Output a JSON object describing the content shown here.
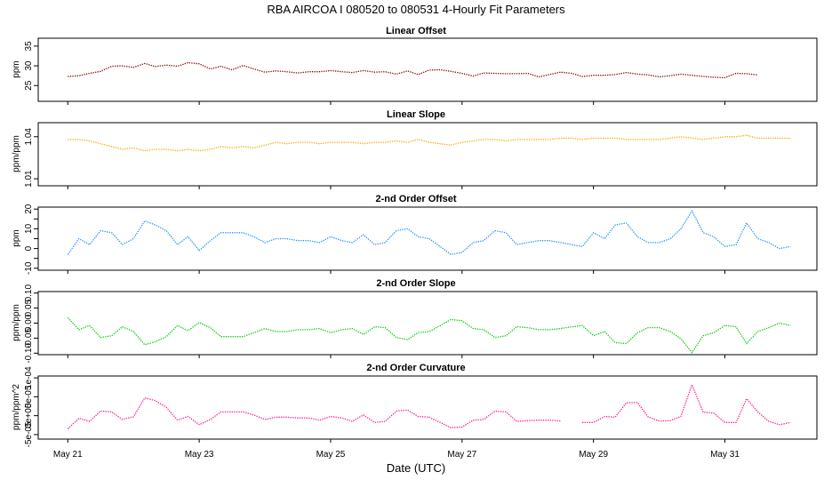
{
  "title": "RBA   AIRCOA I   080520 to 080531   4-Hourly Fit Parameters",
  "xlabel": "Date (UTC)",
  "x_ticks": [
    {
      "day": 21,
      "label": "May 21"
    },
    {
      "day": 23,
      "label": "May 23"
    },
    {
      "day": 25,
      "label": "May 25"
    },
    {
      "day": 27,
      "label": "May 27"
    },
    {
      "day": 29,
      "label": "May 29"
    },
    {
      "day": 31,
      "label": "May 31"
    }
  ],
  "chart_data": [
    {
      "type": "line",
      "title": "Linear Offset",
      "ylabel": "ppm",
      "color": "#8b0000",
      "xlim": [
        20.55,
        32.4
      ],
      "ylim": [
        21,
        37
      ],
      "yticks": [
        25,
        30,
        35
      ],
      "ytick_labels": [
        "25",
        "30",
        "35"
      ],
      "x": [
        21.0,
        21.17,
        21.33,
        21.5,
        21.67,
        21.83,
        22.0,
        22.17,
        22.33,
        22.5,
        22.67,
        22.83,
        23.0,
        23.17,
        23.33,
        23.5,
        23.67,
        23.83,
        24.0,
        24.17,
        24.33,
        24.5,
        24.67,
        24.83,
        25.0,
        25.17,
        25.33,
        25.5,
        25.67,
        25.83,
        26.0,
        26.17,
        26.33,
        26.5,
        26.67,
        26.83,
        27.0,
        27.17,
        27.33,
        27.5,
        27.67,
        27.83,
        28.0,
        28.17,
        28.33,
        28.5,
        28.67,
        28.83,
        29.0,
        29.17,
        29.33,
        29.5,
        29.67,
        29.83,
        30.0,
        30.17,
        30.33,
        30.5,
        30.67,
        30.83,
        31.0,
        31.17,
        31.33,
        31.5,
        31.67,
        31.83,
        32.0
      ],
      "values": [
        27.3,
        27.5,
        28.1,
        28.6,
        29.9,
        30.0,
        29.6,
        30.6,
        29.8,
        30.2,
        29.9,
        30.8,
        30.5,
        29.2,
        29.9,
        29.0,
        30.1,
        29.2,
        28.4,
        28.7,
        28.5,
        28.2,
        28.5,
        28.5,
        28.8,
        28.5,
        28.3,
        28.8,
        28.4,
        28.5,
        27.9,
        28.7,
        27.8,
        28.9,
        29.0,
        28.6,
        28.1,
        27.4,
        28.2,
        28.1,
        28.0,
        28.0,
        28.1,
        27.2,
        27.8,
        28.4,
        28.1,
        27.3,
        27.6,
        27.6,
        27.8,
        28.3,
        27.9,
        27.7,
        27.2,
        27.5,
        27.9,
        27.6,
        27.3,
        27.1,
        27.0,
        28.1,
        28.0,
        27.7,
        null,
        null,
        null
      ]
    },
    {
      "type": "line",
      "title": "Linear Slope",
      "ylabel": "ppm/ppm",
      "color": "#ffa500",
      "xlim": [
        20.55,
        32.4
      ],
      "ylim": [
        1.005,
        1.05
      ],
      "yticks": [
        1.01,
        1.04
      ],
      "ytick_labels": [
        "1.01",
        "1.04"
      ],
      "x": [
        21.0,
        21.17,
        21.33,
        21.5,
        21.67,
        21.83,
        22.0,
        22.17,
        22.33,
        22.5,
        22.67,
        22.83,
        23.0,
        23.17,
        23.33,
        23.5,
        23.67,
        23.83,
        24.0,
        24.17,
        24.33,
        24.5,
        24.67,
        24.83,
        25.0,
        25.17,
        25.33,
        25.5,
        25.67,
        25.83,
        26.0,
        26.17,
        26.33,
        26.5,
        26.67,
        26.83,
        27.0,
        27.17,
        27.33,
        27.5,
        27.67,
        27.83,
        28.0,
        28.17,
        28.33,
        28.5,
        28.67,
        28.83,
        29.0,
        29.17,
        29.33,
        29.5,
        29.67,
        29.83,
        30.0,
        30.17,
        30.33,
        30.5,
        30.67,
        30.83,
        31.0,
        31.17,
        31.33,
        31.5,
        31.67,
        31.83,
        32.0
      ],
      "values": [
        1.038,
        1.038,
        1.037,
        1.035,
        1.033,
        1.031,
        1.032,
        1.03,
        1.031,
        1.031,
        1.03,
        1.031,
        1.03,
        1.031,
        1.033,
        1.032,
        1.033,
        1.032,
        1.034,
        1.036,
        1.035,
        1.036,
        1.036,
        1.035,
        1.036,
        1.036,
        1.036,
        1.035,
        1.036,
        1.036,
        1.037,
        1.036,
        1.038,
        1.036,
        1.035,
        1.034,
        1.036,
        1.037,
        1.038,
        1.038,
        1.037,
        1.038,
        1.038,
        1.038,
        1.038,
        1.039,
        1.039,
        1.038,
        1.039,
        1.039,
        1.039,
        1.038,
        1.038,
        1.038,
        1.038,
        1.039,
        1.04,
        1.039,
        1.038,
        1.039,
        1.04,
        1.04,
        1.041,
        1.039,
        1.039,
        1.039,
        1.039
      ]
    },
    {
      "type": "line",
      "title": "2-nd Order Offset",
      "ylabel": "ppm",
      "color": "#1e90ff",
      "xlim": [
        20.55,
        32.4
      ],
      "ylim": [
        -11,
        21
      ],
      "yticks": [
        -10,
        -5,
        0,
        5,
        10,
        15,
        20
      ],
      "ytick_labels": [
        "-10",
        "",
        "0",
        "",
        "10",
        "",
        "20"
      ],
      "x": [
        21.0,
        21.17,
        21.33,
        21.5,
        21.67,
        21.83,
        22.0,
        22.17,
        22.33,
        22.5,
        22.67,
        22.83,
        23.0,
        23.17,
        23.33,
        23.5,
        23.67,
        23.83,
        24.0,
        24.17,
        24.33,
        24.5,
        24.67,
        24.83,
        25.0,
        25.17,
        25.33,
        25.5,
        25.67,
        25.83,
        26.0,
        26.17,
        26.33,
        26.5,
        26.67,
        26.83,
        27.0,
        27.17,
        27.33,
        27.5,
        27.67,
        27.83,
        28.0,
        28.17,
        28.33,
        28.5,
        28.67,
        28.83,
        29.0,
        29.17,
        29.33,
        29.5,
        29.67,
        29.83,
        30.0,
        30.17,
        30.33,
        30.5,
        30.67,
        30.83,
        31.0,
        31.17,
        31.33,
        31.5,
        31.67,
        31.83,
        32.0
      ],
      "values": [
        -3,
        5,
        2,
        9,
        8,
        2,
        5,
        14,
        12,
        9,
        2,
        6,
        -1,
        4,
        8,
        8,
        8,
        6,
        3,
        5,
        5,
        4,
        4,
        3,
        6,
        4,
        3,
        7,
        2,
        3,
        9,
        10,
        6,
        5,
        1,
        -3,
        -2,
        3,
        4,
        9,
        8,
        2,
        3,
        4,
        4,
        3,
        2,
        1,
        8,
        5,
        12,
        13,
        6,
        3,
        3,
        5,
        10,
        19,
        8,
        6,
        1,
        2,
        13,
        5,
        3,
        0,
        1
      ]
    },
    {
      "type": "line",
      "title": "2-nd Order Slope",
      "ylabel": "ppm/ppm",
      "color": "#00cc00",
      "xlim": [
        20.55,
        32.4
      ],
      "ylim": [
        -0.105,
        0.105
      ],
      "yticks": [
        -0.1,
        -0.05,
        0.0,
        0.05,
        0.1
      ],
      "ytick_labels": [
        "-0.10",
        "-0.05",
        "0.00",
        "0.05",
        "0.10"
      ],
      "x": [
        21.0,
        21.17,
        21.33,
        21.5,
        21.67,
        21.83,
        22.0,
        22.17,
        22.33,
        22.5,
        22.67,
        22.83,
        23.0,
        23.17,
        23.33,
        23.5,
        23.67,
        23.83,
        24.0,
        24.17,
        24.33,
        24.5,
        24.67,
        24.83,
        25.0,
        25.17,
        25.33,
        25.5,
        25.67,
        25.83,
        26.0,
        26.17,
        26.33,
        26.5,
        26.67,
        26.83,
        27.0,
        27.17,
        27.33,
        27.5,
        27.67,
        27.83,
        28.0,
        28.17,
        28.33,
        28.5,
        28.67,
        28.83,
        29.0,
        29.17,
        29.33,
        29.5,
        29.67,
        29.83,
        30.0,
        30.17,
        30.33,
        30.5,
        30.67,
        30.83,
        31.0,
        31.17,
        31.33,
        31.5,
        31.67,
        31.83,
        32.0
      ],
      "values": [
        0.018,
        -0.022,
        -0.008,
        -0.048,
        -0.042,
        -0.012,
        -0.028,
        -0.072,
        -0.062,
        -0.045,
        -0.008,
        -0.025,
        0.002,
        -0.015,
        -0.045,
        -0.045,
        -0.045,
        -0.032,
        -0.018,
        -0.028,
        -0.028,
        -0.022,
        -0.022,
        -0.018,
        -0.032,
        -0.022,
        -0.018,
        -0.038,
        -0.012,
        -0.015,
        -0.048,
        -0.055,
        -0.032,
        -0.028,
        -0.008,
        0.012,
        0.008,
        -0.018,
        -0.022,
        -0.048,
        -0.042,
        -0.012,
        -0.015,
        -0.022,
        -0.022,
        -0.018,
        -0.012,
        -0.008,
        -0.042,
        -0.028,
        -0.065,
        -0.068,
        -0.032,
        -0.015,
        -0.015,
        -0.028,
        -0.052,
        -0.098,
        -0.042,
        -0.032,
        -0.008,
        -0.012,
        -0.068,
        -0.028,
        -0.015,
        0.0,
        -0.008
      ]
    },
    {
      "type": "line",
      "title": "2-nd Order Curvature",
      "ylabel": "ppm/ppm^2",
      "color": "#ff1493",
      "xlim": [
        20.55,
        32.4
      ],
      "ylim": [
        -6.2e-05,
        0.000105
      ],
      "yticks": [
        -5e-05,
        0,
        5e-05,
        0.0001
      ],
      "ytick_labels": [
        "-5e-05",
        "0e+00",
        "5e-05",
        "1e-04"
      ],
      "x": [
        21.0,
        21.17,
        21.33,
        21.5,
        21.67,
        21.83,
        22.0,
        22.17,
        22.33,
        22.5,
        22.67,
        22.83,
        23.0,
        23.17,
        23.33,
        23.5,
        23.67,
        23.83,
        24.0,
        24.17,
        24.33,
        24.5,
        24.67,
        24.83,
        25.0,
        25.17,
        25.33,
        25.5,
        25.67,
        25.83,
        26.0,
        26.17,
        26.33,
        26.5,
        26.67,
        26.83,
        27.0,
        27.17,
        27.33,
        27.5,
        27.67,
        27.83,
        28.0,
        28.17,
        28.33,
        28.5,
        28.67,
        28.83,
        29.0,
        29.17,
        29.33,
        29.5,
        29.67,
        29.83,
        30.0,
        30.17,
        30.33,
        30.5,
        30.67,
        30.83,
        31.0,
        31.17,
        31.33,
        31.5,
        31.67,
        31.83,
        32.0
      ],
      "values": [
        -3.5e-05,
        -7e-06,
        -1.5e-05,
        1.2e-05,
        1e-05,
        -1e-05,
        -3e-06,
        4.7e-05,
        4e-05,
        2.2e-05,
        -1.2e-05,
        -2e-06,
        -2.4e-05,
        -1e-05,
        1e-05,
        1e-05,
        1e-05,
        2e-06,
        -1e-05,
        -4e-06,
        -4e-06,
        -6e-06,
        -6e-06,
        -1.2e-05,
        -2e-06,
        -6e-06,
        -1.5e-05,
        2e-06,
        -1.8e-05,
        -1.5e-05,
        1.2e-05,
        1.5e-05,
        -2e-06,
        -4e-06,
        -1.8e-05,
        -3.2e-05,
        -3e-05,
        -1.2e-05,
        -1e-05,
        1.2e-05,
        1e-05,
        -1.5e-05,
        -1.3e-05,
        -1.2e-05,
        -1.2e-05,
        -1.4e-05,
        null,
        -1.8e-05,
        -1.8e-05,
        -2e-06,
        -4e-06,
        3.4e-05,
        3.5e-05,
        -3e-06,
        -1.4e-05,
        -1.3e-05,
        -2e-06,
        8.2e-05,
        9e-06,
        7e-06,
        -1.8e-05,
        -1.8e-05,
        4.5e-05,
        1e-05,
        -1.5e-05,
        -2.4e-05,
        -1.8e-05
      ]
    }
  ]
}
